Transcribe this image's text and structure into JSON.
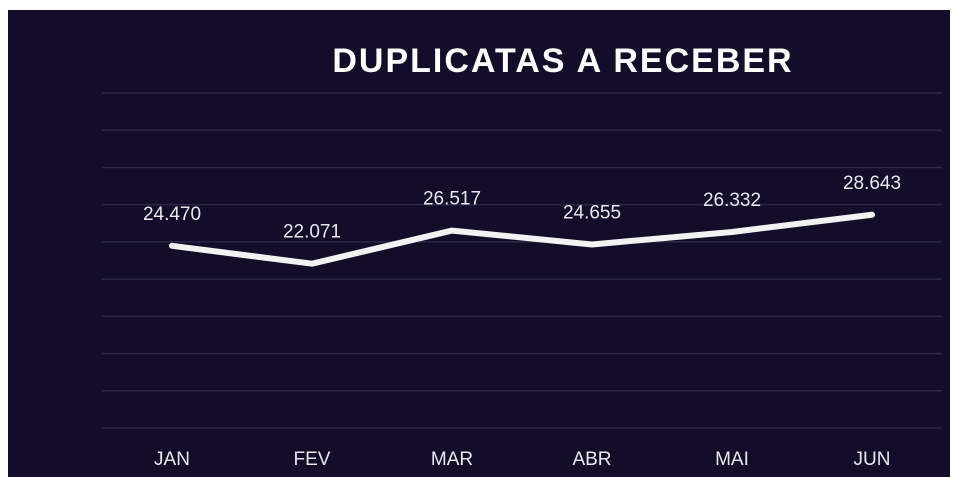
{
  "chart_data": {
    "type": "line",
    "title": "DUPLICATAS A RECEBER",
    "categories": [
      "JAN",
      "FEV",
      "MAR",
      "ABR",
      "MAI",
      "JUN"
    ],
    "series": [
      {
        "name": "Duplicatas a receber",
        "color": "#f2f2f2",
        "values": [
          24470,
          22071,
          26517,
          24655,
          26332,
          28643
        ],
        "value_labels": [
          "24.470",
          "22.071",
          "26.517",
          "24.655",
          "26.332",
          "28.643"
        ]
      }
    ],
    "ylim": [
      0,
      45000
    ],
    "yticks": [
      0,
      5000,
      10000,
      15000,
      20000,
      25000,
      30000,
      35000,
      40000,
      45000
    ],
    "grid": true,
    "background": "#130d29"
  }
}
